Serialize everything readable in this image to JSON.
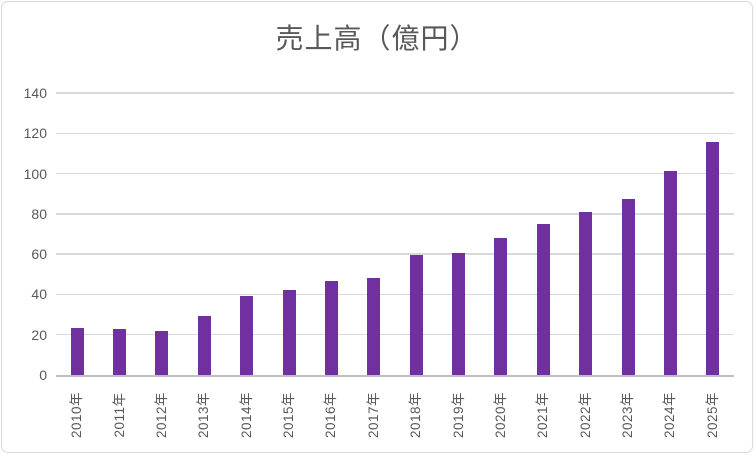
{
  "chart_data": {
    "type": "bar",
    "title": "売上高（億円）",
    "categories": [
      "2010年",
      "2011年",
      "2012年",
      "2013年",
      "2014年",
      "2015年",
      "2016年",
      "2017年",
      "2018年",
      "2019年",
      "2020年",
      "2021年",
      "2022年",
      "2023年",
      "2024年",
      "2025年"
    ],
    "values": [
      23.5,
      23,
      22,
      29.5,
      39,
      42,
      46.5,
      48,
      59.5,
      60.5,
      68,
      75,
      81,
      87.5,
      101.5,
      115.5
    ],
    "xlabel": "",
    "ylabel": "",
    "ylim": [
      0,
      140
    ],
    "ytick_step": 20,
    "yticks": [
      0,
      20,
      40,
      60,
      80,
      100,
      120,
      140
    ],
    "grid": true,
    "legend_position": "none",
    "colors": {
      "bar": "#7030A0",
      "gridline": "#D9D9D9",
      "axis_line": "#BFBFBF",
      "text": "#595959",
      "frame_border": "#D9D9D9",
      "background": "#FFFFFF"
    }
  }
}
